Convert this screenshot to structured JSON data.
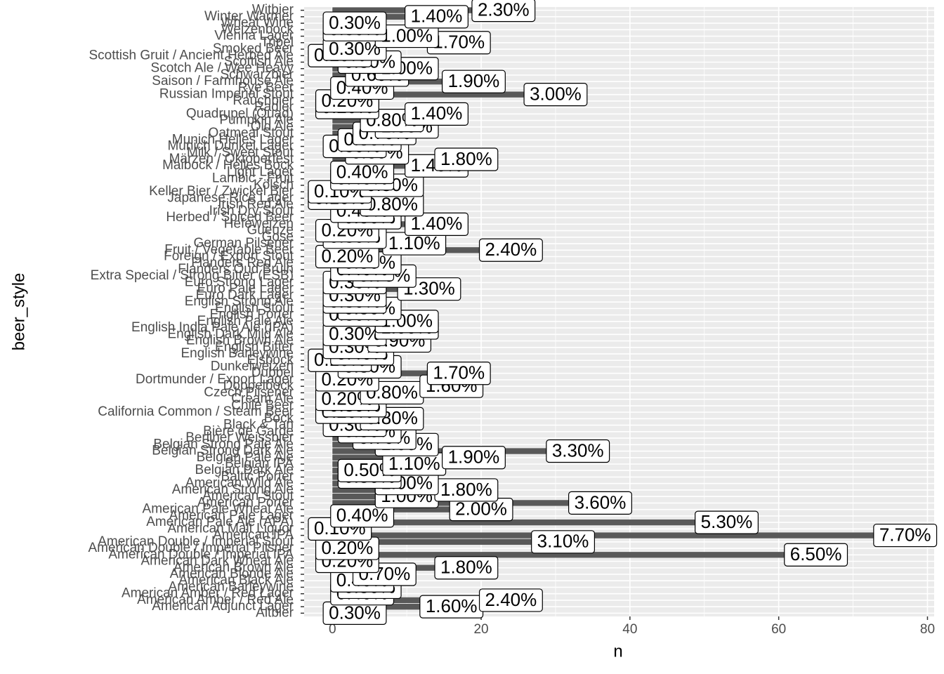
{
  "chart_data": {
    "type": "bar",
    "orientation": "horizontal",
    "x_label": "n",
    "y_label": "beer_style",
    "categories": [
      "Altbier",
      "American Adjunct Lager",
      "American Amber / Red Ale",
      "American Amber / Red Lager",
      "American Barleywine",
      "American Black Ale",
      "American Blonde Ale",
      "American Brown Ale",
      "American Dark Wheat Ale",
      "American Double / Imperial IPA",
      "American Double / Imperial Pilsner",
      "American Double / Imperial Stout",
      "American IPA",
      "American Malt Liquor",
      "American Pale Ale (APA)",
      "American Pale Lager",
      "American Pale Wheat Ale",
      "American Porter",
      "American Stout",
      "American Strong Ale",
      "American Wild Ale",
      "Baltic Porter",
      "Belgian Dark Ale",
      "Belgian IPA",
      "Belgian Pale Ale",
      "Belgian Strong Dark Ale",
      "Belgian Strong Pale Ale",
      "Berliner Weissbier",
      "Bière de Garde",
      "Black & Tan",
      "Bock",
      "California Common / Steam Beer",
      "Chile Beer",
      "Cream Ale",
      "Czech Pilsener",
      "Doppelbock",
      "Dortmunder / Export Lager",
      "Dubbel",
      "Dunkelweizen",
      "Eisbock",
      "English Barleywine",
      "English Bitter",
      "English Brown Ale",
      "English Dark Mild Ale",
      "English India Pale Ale (IPA)",
      "English Pale Ale",
      "English Porter",
      "English Stout",
      "English Strong Ale",
      "Euro Dark Lager",
      "Euro Pale Lager",
      "Euro Strong Lager",
      "Extra Special / Strong Bitter (ESB)",
      "Flanders Oud Bruin",
      "Flanders Red Ale",
      "Foreign / Export Stout",
      "Fruit / Vegetable Beer",
      "German Pilsener",
      "Gose",
      "Gueuze",
      "Hefeweizen",
      "Herbed / Spiced Beer",
      "Irish Dry Stout",
      "Irish Red Ale",
      "Japanese Rice Lager",
      "Keller Bier / Zwickel Bier",
      "Kölsch",
      "Lambic - Fruit",
      "Light Lager",
      "Maibock / Helles Bock",
      "Märzen / Oktoberfest",
      "Milk / Sweet Stout",
      "Munich Dunkel Lager",
      "Munich Helles Lager",
      "Oatmeal Stout",
      "Old Ale",
      "Pumpkin Ale",
      "Quadrupel (Quad)",
      "Radler",
      "Rauchbier",
      "Russian Imperial Stout",
      "Rye Beer",
      "Saison / Farmhouse Ale",
      "Schwarzbier",
      "Scotch Ale / Wee Heavy",
      "Scottish Ale",
      "Scottish Gruit / Ancient Herbed Ale",
      "Smoked Beer",
      "Tripel",
      "Vienna Lager",
      "Weizenbock",
      "Wheat Wine",
      "Winter Warmer",
      "Witbier"
    ],
    "values": [
      3,
      16,
      24,
      4,
      5,
      4,
      7,
      18,
      2,
      65,
      2,
      31,
      77,
      1,
      53,
      4,
      20,
      36,
      10,
      18,
      10,
      5,
      5,
      11,
      19,
      33,
      10,
      7,
      5,
      3,
      8,
      2,
      3,
      2,
      8,
      16,
      2,
      17,
      5,
      1,
      4,
      3,
      9,
      3,
      10,
      10,
      3,
      5,
      3,
      3,
      13,
      3,
      7,
      4,
      5,
      2,
      24,
      11,
      3,
      2,
      14,
      5,
      4,
      8,
      1,
      1,
      8,
      4,
      4,
      14,
      18,
      6,
      3,
      5,
      7,
      10,
      8,
      14,
      2,
      2,
      30,
      4,
      19,
      6,
      10,
      5,
      1,
      3,
      17,
      10,
      3,
      3,
      14,
      23
    ],
    "percents": [
      0.3,
      1.6,
      2.4,
      0.4,
      0.5,
      0.4,
      0.7,
      1.8,
      0.2,
      6.5,
      0.2,
      3.1,
      7.7,
      0.1,
      5.3,
      0.4,
      2.0,
      3.6,
      1.0,
      1.8,
      1.0,
      0.5,
      0.5,
      1.1,
      1.9,
      3.3,
      1.0,
      0.7,
      0.5,
      0.3,
      0.8,
      0.2,
      0.3,
      0.2,
      0.8,
      1.6,
      0.2,
      1.7,
      0.5,
      0.1,
      0.4,
      0.3,
      0.9,
      0.3,
      1.0,
      1.0,
      0.3,
      0.5,
      0.3,
      0.3,
      1.3,
      0.3,
      0.7,
      0.4,
      0.5,
      0.2,
      2.4,
      1.1,
      0.3,
      0.2,
      1.4,
      0.5,
      0.4,
      0.8,
      0.1,
      0.1,
      0.8,
      0.4,
      0.4,
      1.4,
      1.8,
      0.6,
      0.3,
      0.5,
      0.7,
      1.0,
      0.8,
      1.4,
      0.2,
      0.2,
      3.0,
      0.4,
      1.9,
      0.6,
      1.0,
      0.5,
      0.1,
      0.3,
      1.7,
      1.0,
      0.3,
      0.3,
      1.4,
      2.3
    ],
    "percent_labels": [
      "0.30%",
      "1.60%",
      "2.40%",
      "0.40%",
      "0.50%",
      "0.40%",
      "0.70%",
      "1.80%",
      "0.20%",
      "6.50%",
      "0.20%",
      "3.10%",
      "7.70%",
      "0.10%",
      "5.30%",
      "0.40%",
      "2.00%",
      "3.60%",
      "1.00%",
      "1.80%",
      "1.00%",
      "0.50%",
      "0.50%",
      "1.10%",
      "1.90%",
      "3.30%",
      "1.00%",
      "0.70%",
      "0.50%",
      "0.30%",
      "0.80%",
      "0.20%",
      "0.30%",
      "0.20%",
      "0.80%",
      "1.60%",
      "0.20%",
      "1.70%",
      "0.50%",
      "0.10%",
      "0.40%",
      "0.30%",
      "0.90%",
      "0.30%",
      "1.00%",
      "1.00%",
      "0.30%",
      "0.50%",
      "0.30%",
      "0.30%",
      "1.30%",
      "0.30%",
      "0.70%",
      "0.40%",
      "0.50%",
      "0.20%",
      "2.40%",
      "1.10%",
      "0.30%",
      "0.20%",
      "1.40%",
      "0.50%",
      "0.40%",
      "0.80%",
      "0.10%",
      "0.10%",
      "0.80%",
      "0.40%",
      "0.40%",
      "1.40%",
      "1.80%",
      "0.60%",
      "0.30%",
      "0.50%",
      "0.70%",
      "1.00%",
      "0.80%",
      "1.40%",
      "0.20%",
      "0.20%",
      "3.00%",
      "0.40%",
      "1.90%",
      "0.60%",
      "1.00%",
      "0.50%",
      "0.10%",
      "0.30%",
      "1.70%",
      "1.00%",
      "0.30%",
      "0.30%",
      "1.40%",
      "2.30%"
    ],
    "color": "#595959",
    "xlim": [
      -3.8,
      80.9
    ],
    "xticks": [
      0,
      20,
      40,
      60,
      80
    ],
    "x_minor_ticks": [
      10,
      30,
      50,
      70
    ],
    "grid": true
  }
}
